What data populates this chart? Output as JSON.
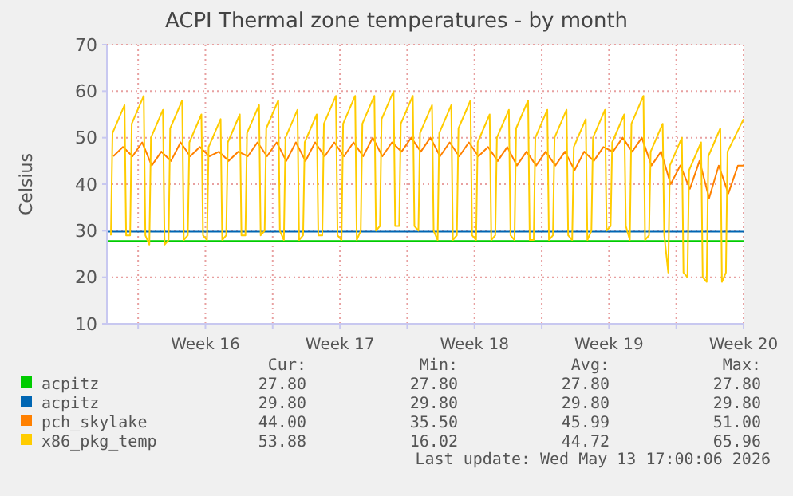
{
  "chart_data": {
    "type": "line",
    "title": "ACPI Thermal zone temperatures - by month",
    "ylabel": "Celsius",
    "xlim": [
      "2026-04-11T09:00",
      "2026-05-14T12:00"
    ],
    "xticks": [
      {
        "value": "2026-04-13",
        "label": null
      },
      {
        "value": "2026-04-16T12:00",
        "label": "Week 16"
      },
      {
        "value": "2026-04-20",
        "label": null
      },
      {
        "value": "2026-04-23T12:00",
        "label": "Week 17"
      },
      {
        "value": "2026-04-27",
        "label": null
      },
      {
        "value": "2026-04-30T12:00",
        "label": "Week 18"
      },
      {
        "value": "2026-05-04",
        "label": null
      },
      {
        "value": "2026-05-07T12:00",
        "label": "Week 19"
      },
      {
        "value": "2026-05-11",
        "label": null
      },
      {
        "value": "2026-05-14T12:00",
        "label": "Week 20"
      }
    ],
    "ylim": [
      10,
      70
    ],
    "yticks": [
      10,
      20,
      30,
      40,
      50,
      60,
      70
    ],
    "grid": true,
    "legend": "bottom",
    "marker": "none",
    "line_style": "solid",
    "series": [
      {
        "name": "acpitz",
        "color": "#00cc00",
        "x": [
          "2026-04-11T09:00",
          "2026-05-14T12:00"
        ],
        "values": [
          27.8,
          27.8
        ]
      },
      {
        "name": "acpitz",
        "color": "#0066b3",
        "x": [
          "2026-04-11T09:00",
          "2026-05-14T12:00"
        ],
        "values": [
          29.8,
          29.8
        ]
      },
      {
        "name": "pch_skylake",
        "color": "#ff8000",
        "x": [
          "2026-04-11T17:00",
          "2026-04-12T05:00",
          "2026-04-12T17:00",
          "2026-04-13T05:00",
          "2026-04-13T17:00",
          "2026-04-14T05:00",
          "2026-04-14T17:00",
          "2026-04-15T05:00",
          "2026-04-15T17:00",
          "2026-04-16T05:00",
          "2026-04-16T17:00",
          "2026-04-17T05:00",
          "2026-04-17T17:00",
          "2026-04-18T05:00",
          "2026-04-18T17:00",
          "2026-04-19T05:00",
          "2026-04-19T17:00",
          "2026-04-20T05:00",
          "2026-04-20T17:00",
          "2026-04-21T05:00",
          "2026-04-21T17:00",
          "2026-04-22T05:00",
          "2026-04-22T17:00",
          "2026-04-23T05:00",
          "2026-04-23T17:00",
          "2026-04-24T05:00",
          "2026-04-24T17:00",
          "2026-04-25T05:00",
          "2026-04-25T17:00",
          "2026-04-26T05:00",
          "2026-04-26T17:00",
          "2026-04-27T05:00",
          "2026-04-27T17:00",
          "2026-04-28T05:00",
          "2026-04-28T17:00",
          "2026-04-29T05:00",
          "2026-04-29T17:00",
          "2026-04-30T05:00",
          "2026-04-30T17:00",
          "2026-05-01T05:00",
          "2026-05-01T17:00",
          "2026-05-02T05:00",
          "2026-05-02T17:00",
          "2026-05-03T05:00",
          "2026-05-03T17:00",
          "2026-05-04T05:00",
          "2026-05-04T17:00",
          "2026-05-05T05:00",
          "2026-05-05T17:00",
          "2026-05-06T05:00",
          "2026-05-06T17:00",
          "2026-05-07T05:00",
          "2026-05-07T17:00",
          "2026-05-08T05:00",
          "2026-05-08T17:00",
          "2026-05-09T05:00",
          "2026-05-09T17:00",
          "2026-05-10T05:00",
          "2026-05-10T17:00",
          "2026-05-11T05:00",
          "2026-05-11T17:00",
          "2026-05-12T05:00",
          "2026-05-12T17:00",
          "2026-05-13T05:00",
          "2026-05-13T17:00",
          "2026-05-14T05:00",
          "2026-05-14T12:00"
        ],
        "values": [
          46,
          48,
          46,
          49,
          44,
          47,
          45,
          49,
          46,
          48,
          46,
          47,
          45,
          47,
          46,
          49,
          46,
          49,
          45,
          49,
          45,
          49,
          46,
          49,
          46,
          49,
          46,
          50,
          46,
          49,
          47,
          50,
          47,
          50,
          46,
          49,
          46,
          49,
          46,
          48,
          45,
          48,
          44,
          47,
          44,
          47,
          44,
          47,
          43,
          47,
          45,
          48,
          47,
          50,
          47,
          50,
          44,
          47,
          40,
          44,
          39,
          45,
          37,
          44,
          38,
          44,
          44
        ]
      },
      {
        "name": "x86_pkg_temp",
        "color": "#ffcc00",
        "x": [
          "2026-04-11T14:00",
          "2026-04-11T16:00",
          "2026-04-12T07:00",
          "2026-04-12T09:00",
          "2026-04-12T14:00",
          "2026-04-12T16:00",
          "2026-04-13T07:00",
          "2026-04-13T09:00",
          "2026-04-13T14:00",
          "2026-04-13T16:00",
          "2026-04-14T07:00",
          "2026-04-14T09:00",
          "2026-04-14T14:00",
          "2026-04-14T16:00",
          "2026-04-15T07:00",
          "2026-04-15T09:00",
          "2026-04-15T14:00",
          "2026-04-15T16:00",
          "2026-04-16T07:00",
          "2026-04-16T09:00",
          "2026-04-16T14:00",
          "2026-04-16T16:00",
          "2026-04-17T07:00",
          "2026-04-17T09:00",
          "2026-04-17T14:00",
          "2026-04-17T16:00",
          "2026-04-18T07:00",
          "2026-04-18T09:00",
          "2026-04-18T14:00",
          "2026-04-18T16:00",
          "2026-04-19T07:00",
          "2026-04-19T09:00",
          "2026-04-19T14:00",
          "2026-04-19T16:00",
          "2026-04-20T07:00",
          "2026-04-20T09:00",
          "2026-04-20T14:00",
          "2026-04-20T16:00",
          "2026-04-21T07:00",
          "2026-04-21T09:00",
          "2026-04-21T14:00",
          "2026-04-21T16:00",
          "2026-04-22T07:00",
          "2026-04-22T09:00",
          "2026-04-22T14:00",
          "2026-04-22T16:00",
          "2026-04-23T07:00",
          "2026-04-23T09:00",
          "2026-04-23T14:00",
          "2026-04-23T16:00",
          "2026-04-24T07:00",
          "2026-04-24T09:00",
          "2026-04-24T14:00",
          "2026-04-24T16:00",
          "2026-04-25T07:00",
          "2026-04-25T09:00",
          "2026-04-25T14:00",
          "2026-04-25T16:00",
          "2026-04-26T07:00",
          "2026-04-26T09:00",
          "2026-04-26T14:00",
          "2026-04-26T16:00",
          "2026-04-27T07:00",
          "2026-04-27T09:00",
          "2026-04-27T14:00",
          "2026-04-27T16:00",
          "2026-04-28T07:00",
          "2026-04-28T09:00",
          "2026-04-28T14:00",
          "2026-04-28T16:00",
          "2026-04-29T07:00",
          "2026-04-29T09:00",
          "2026-04-29T14:00",
          "2026-04-29T16:00",
          "2026-04-30T07:00",
          "2026-04-30T09:00",
          "2026-04-30T14:00",
          "2026-04-30T16:00",
          "2026-05-01T07:00",
          "2026-05-01T09:00",
          "2026-05-01T14:00",
          "2026-05-01T16:00",
          "2026-05-02T07:00",
          "2026-05-02T09:00",
          "2026-05-02T14:00",
          "2026-05-02T16:00",
          "2026-05-03T07:00",
          "2026-05-03T09:00",
          "2026-05-03T14:00",
          "2026-05-03T16:00",
          "2026-05-04T07:00",
          "2026-05-04T09:00",
          "2026-05-04T14:00",
          "2026-05-04T16:00",
          "2026-05-05T07:00",
          "2026-05-05T09:00",
          "2026-05-05T14:00",
          "2026-05-05T16:00",
          "2026-05-06T07:00",
          "2026-05-06T09:00",
          "2026-05-06T14:00",
          "2026-05-06T16:00",
          "2026-05-07T07:00",
          "2026-05-07T09:00",
          "2026-05-07T14:00",
          "2026-05-07T16:00",
          "2026-05-08T07:00",
          "2026-05-08T09:00",
          "2026-05-08T14:00",
          "2026-05-08T16:00",
          "2026-05-09T07:00",
          "2026-05-09T09:00",
          "2026-05-09T14:00",
          "2026-05-09T16:00",
          "2026-05-10T07:00",
          "2026-05-10T09:00",
          "2026-05-10T14:00",
          "2026-05-10T16:00",
          "2026-05-11T07:00",
          "2026-05-11T09:00",
          "2026-05-11T14:00",
          "2026-05-11T16:00",
          "2026-05-12T07:00",
          "2026-05-12T09:00",
          "2026-05-12T14:00",
          "2026-05-12T16:00",
          "2026-05-13T07:00",
          "2026-05-13T09:00",
          "2026-05-13T14:00",
          "2026-05-13T16:00",
          "2026-05-14T12:00"
        ],
        "values": [
          29,
          51,
          57,
          29,
          29,
          53,
          59,
          29,
          27,
          50,
          56,
          27,
          28,
          52,
          58,
          28,
          29,
          49,
          55,
          29,
          28,
          48,
          54,
          28,
          29,
          49,
          55,
          29,
          29,
          51,
          57,
          29,
          30,
          52,
          58,
          30,
          28,
          50,
          56,
          28,
          29,
          49,
          55,
          29,
          29,
          53,
          59,
          29,
          28,
          53,
          59,
          28,
          30,
          53,
          59,
          30,
          31,
          54,
          60,
          31,
          31,
          53,
          59,
          31,
          30,
          51,
          57,
          30,
          28,
          51,
          57,
          28,
          29,
          52,
          58,
          29,
          28,
          49,
          55,
          28,
          29,
          50,
          56,
          29,
          28,
          52,
          58,
          28,
          28,
          50,
          56,
          28,
          29,
          50,
          56,
          29,
          28,
          48,
          54,
          28,
          30,
          50,
          56,
          30,
          31,
          49,
          55,
          31,
          28,
          53,
          59,
          28,
          29,
          47,
          53,
          29,
          21,
          44,
          50,
          21,
          20,
          43,
          49,
          20,
          19,
          46,
          52,
          19,
          21,
          47,
          54
        ]
      }
    ],
    "annotations": [
      "Cur:",
      "Min:",
      "Avg:",
      "Max:",
      "27.80",
      "27.80",
      "27.80",
      "27.80",
      "29.80",
      "29.80",
      "29.80",
      "29.80",
      "44.00",
      "35.50",
      "45.99",
      "51.00",
      "53.88",
      "16.02",
      "44.72",
      "65.96",
      "Last update: Wed May 13 17:00:06 2026"
    ]
  }
}
